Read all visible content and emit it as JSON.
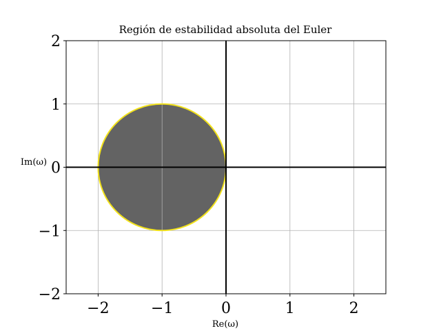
{
  "chart_data": {
    "type": "area",
    "title": "Región de estabilidad absoluta del Euler",
    "xlabel": "Re(ω)",
    "ylabel": "Im(ω)",
    "xlim": [
      -2.5,
      2.5
    ],
    "ylim": [
      -2,
      2
    ],
    "xticks": [
      -2,
      -1,
      0,
      1,
      2
    ],
    "yticks": [
      -2,
      -1,
      0,
      1,
      2
    ],
    "xtick_labels": [
      "−2",
      "−1",
      "0",
      "1",
      "2"
    ],
    "ytick_labels": [
      "−2",
      "−1",
      "0",
      "1",
      "2"
    ],
    "grid": true,
    "reference_lines": {
      "x": 0,
      "y": 0
    },
    "region": {
      "shape": "circle",
      "center": [
        -1,
        0
      ],
      "radius": 1,
      "fill_color": "#636363",
      "edge_color": "#f2e21b"
    }
  }
}
